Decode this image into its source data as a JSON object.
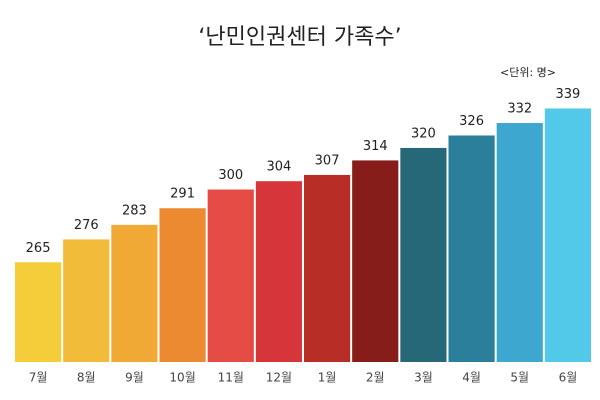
{
  "chart_data": {
    "type": "bar",
    "title": "‘난민인권센터 가족수’",
    "unit_label": "<단위: 명>",
    "categories": [
      "7월",
      "8월",
      "9월",
      "10월",
      "11월",
      "12월",
      "1월",
      "2월",
      "3월",
      "4월",
      "5월",
      "6월"
    ],
    "values": [
      265,
      276,
      283,
      291,
      300,
      304,
      307,
      314,
      320,
      326,
      332,
      339
    ],
    "colors": [
      "#f5cd3b",
      "#f2bc3a",
      "#efa934",
      "#ec8a32",
      "#e54c46",
      "#d6363a",
      "#b82e27",
      "#861d1a",
      "#276878",
      "#2c7f9b",
      "#3ea7cf",
      "#52c9e8"
    ],
    "ylim": [
      217,
      345
    ]
  }
}
